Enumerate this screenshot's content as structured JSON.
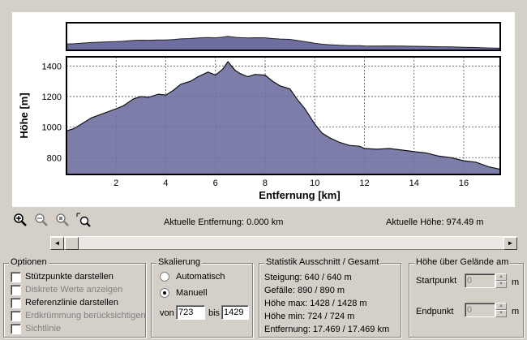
{
  "chart_data": {
    "type": "area",
    "title": "",
    "xlabel": "Entfernung [km]",
    "ylabel": "Höhe [m]",
    "xlim": [
      0,
      17.47
    ],
    "ylim": [
      690,
      1460
    ],
    "x_ticks": [
      "2",
      "4",
      "6",
      "8",
      "10",
      "12",
      "14",
      "16"
    ],
    "y_ticks": [
      "800",
      "1000",
      "1200",
      "1400"
    ],
    "grid": true,
    "fill_color": "#6e6fa0",
    "x": [
      0,
      0.3,
      0.6,
      1,
      1.5,
      2,
      2.3,
      2.7,
      3.0,
      3.3,
      3.7,
      4.0,
      4.3,
      4.6,
      5.0,
      5.3,
      5.7,
      6.0,
      6.3,
      6.5,
      6.8,
      7.0,
      7.3,
      7.6,
      8.0,
      8.3,
      8.6,
      9.0,
      9.3,
      9.6,
      10.0,
      10.3,
      10.6,
      11.0,
      11.4,
      11.8,
      12.0,
      12.5,
      13.0,
      13.5,
      14.0,
      14.5,
      15.0,
      15.5,
      16.0,
      16.5,
      17.0,
      17.47
    ],
    "values": [
      975,
      990,
      1020,
      1060,
      1090,
      1120,
      1140,
      1185,
      1200,
      1195,
      1215,
      1210,
      1240,
      1280,
      1300,
      1330,
      1360,
      1340,
      1380,
      1428,
      1370,
      1350,
      1330,
      1345,
      1340,
      1300,
      1270,
      1250,
      1180,
      1120,
      1020,
      960,
      930,
      900,
      880,
      875,
      860,
      855,
      860,
      850,
      840,
      830,
      810,
      800,
      780,
      770,
      740,
      724
    ]
  },
  "overview_label": "",
  "tools": [
    "zoom-in-icon",
    "zoom-out-icon",
    "zoom-fit-icon",
    "zoom-window-icon"
  ],
  "readouts": {
    "distance": "Aktuelle Entfernung: 0.000 km",
    "elevation": "Aktuelle Höhe: 974.49 m"
  },
  "options": {
    "title": "Optionen",
    "items": [
      {
        "label": "Stützpunkte darstellen",
        "enabled": true
      },
      {
        "label": "Diskrete Werte anzeigen",
        "enabled": false
      },
      {
        "label": "Referenzlinie darstellen",
        "enabled": true
      },
      {
        "label": "Erdkrümmung berücksichtigen",
        "enabled": false
      },
      {
        "label": "Sichtlinie",
        "enabled": false
      }
    ]
  },
  "scaling": {
    "title": "Skalierung",
    "auto_label": "Automatisch",
    "manual_label": "Manuell",
    "selected": "Manuell",
    "from_label": "von",
    "from_value": "723",
    "to_label": "bis",
    "to_value": "1429"
  },
  "statistics": {
    "title": "Statistik  Ausschnitt / Gesamt",
    "lines": [
      "Steigung: 640 / 640 m",
      "Gefälle: 890 / 890 m",
      "Höhe max: 1428 / 1428 m",
      "Höhe min: 724 / 724 m",
      "Entfernung: 17.469 / 17.469 km"
    ]
  },
  "terrain": {
    "title": "Höhe über Gelände am",
    "start_label": "Startpunkt",
    "start_value": "0",
    "end_label": "Endpunkt",
    "end_value": "0",
    "unit": "m"
  },
  "scrollbar": {
    "left_arrow": "◄",
    "right_arrow": "►"
  }
}
